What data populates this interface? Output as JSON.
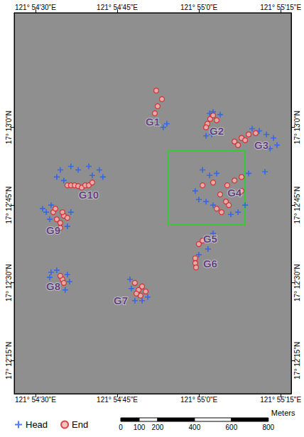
{
  "chart_data": {
    "type": "scatter",
    "xlim": [
      121.90725,
      121.92137
    ],
    "ylim": [
      17.20239,
      17.22281
    ],
    "xticks": [
      {
        "value": 121.908333,
        "label": "121° 54'30\"E"
      },
      {
        "value": 121.9125,
        "label": "121° 54'45\"E"
      },
      {
        "value": 121.916667,
        "label": "121° 55'0\"E"
      },
      {
        "value": 121.920833,
        "label": "121° 55'15\"E"
      }
    ],
    "yticks": [
      {
        "value": 17.204167,
        "label": "17° 12'15\"N"
      },
      {
        "value": 17.208333,
        "label": "17° 12'30\"N"
      },
      {
        "value": 17.2125,
        "label": "17° 12'45\"N"
      },
      {
        "value": 17.216667,
        "label": "17° 13'0\"N"
      }
    ],
    "grid": false,
    "legend": "bottom-left",
    "series": [
      {
        "name": "Head",
        "color": "#1f5cff",
        "marker": "cross",
        "values": [
          [
            121.91503,
            17.21686
          ],
          [
            121.91485,
            17.21667
          ],
          [
            121.91721,
            17.21742
          ],
          [
            121.91739,
            17.2175
          ],
          [
            121.91775,
            17.21735
          ],
          [
            121.91732,
            17.21629
          ],
          [
            121.91703,
            17.21621
          ],
          [
            121.91938,
            17.21659
          ],
          [
            121.91974,
            17.21648
          ],
          [
            121.92011,
            17.21629
          ],
          [
            121.92047,
            17.2161
          ],
          [
            121.92065,
            17.21572
          ],
          [
            121.92029,
            17.21553
          ],
          [
            121.92003,
            17.21428
          ],
          [
            121.91685,
            17.21439
          ],
          [
            121.91721,
            17.21409
          ],
          [
            121.91757,
            17.2142
          ],
          [
            121.91648,
            17.21326
          ],
          [
            121.91666,
            17.2128
          ],
          [
            121.91703,
            17.21269
          ],
          [
            121.91739,
            17.2125
          ],
          [
            121.9192,
            17.2142
          ],
          [
            121.91902,
            17.2125
          ],
          [
            121.91866,
            17.21212
          ],
          [
            121.91829,
            17.212
          ],
          [
            121.91713,
            17.21015
          ],
          [
            121.91739,
            17.21098
          ],
          [
            121.91666,
            17.20984
          ],
          [
            121.91315,
            17.20852
          ],
          [
            121.9134,
            17.20738
          ],
          [
            121.91377,
            17.20738
          ],
          [
            121.91406,
            17.20757
          ],
          [
            121.91322,
            17.20803
          ],
          [
            121.90913,
            17.2089
          ],
          [
            121.90942,
            17.20901
          ],
          [
            121.90996,
            17.20878
          ],
          [
            121.90906,
            17.20863
          ],
          [
            121.91007,
            17.2084
          ],
          [
            121.90985,
            17.20795
          ],
          [
            121.90888,
            17.21212
          ],
          [
            121.90906,
            17.21174
          ],
          [
            121.91014,
            17.21212
          ],
          [
            121.90996,
            17.21136
          ],
          [
            121.9087,
            17.21231
          ],
          [
            121.90913,
            17.2125
          ],
          [
            121.90942,
            17.21401
          ],
          [
            121.9096,
            17.21439
          ],
          [
            121.91014,
            17.21458
          ],
          [
            121.91051,
            17.21439
          ],
          [
            121.91105,
            17.21458
          ],
          [
            121.91159,
            17.21439
          ],
          [
            121.91177,
            17.21401
          ],
          [
            121.91123,
            17.21409
          ],
          [
            121.90978,
            17.21382
          ]
        ]
      },
      {
        "name": "End",
        "color": "#d62020",
        "marker": "circle",
        "values": [
          [
            121.91449,
            17.21864
          ],
          [
            121.91478,
            17.21818
          ],
          [
            121.91456,
            17.2178
          ],
          [
            121.91442,
            17.21742
          ],
          [
            121.9171,
            17.21686
          ],
          [
            121.91724,
            17.21712
          ],
          [
            121.91739,
            17.21731
          ],
          [
            121.91757,
            17.21705
          ],
          [
            121.91703,
            17.21667
          ],
          [
            121.91848,
            17.21591
          ],
          [
            121.91884,
            17.2161
          ],
          [
            121.9192,
            17.21629
          ],
          [
            121.91956,
            17.21636
          ],
          [
            121.91902,
            17.21598
          ],
          [
            121.91866,
            17.21572
          ],
          [
            121.91685,
            17.21356
          ],
          [
            121.91739,
            17.21371
          ],
          [
            121.91811,
            17.21356
          ],
          [
            121.91848,
            17.21382
          ],
          [
            121.91884,
            17.21401
          ],
          [
            121.91804,
            17.21269
          ],
          [
            121.91819,
            17.2125
          ],
          [
            121.91782,
            17.21212
          ],
          [
            121.91757,
            17.21231
          ],
          [
            121.91884,
            17.21326
          ],
          [
            121.91775,
            17.21307
          ],
          [
            121.91666,
            17.21041
          ],
          [
            121.91685,
            17.2106
          ],
          [
            121.91648,
            17.20965
          ],
          [
            121.91648,
            17.20939
          ],
          [
            121.91652,
            17.20916
          ],
          [
            121.9134,
            17.20833
          ],
          [
            121.91359,
            17.20795
          ],
          [
            121.91377,
            17.20814
          ],
          [
            121.91395,
            17.20787
          ],
          [
            121.91369,
            17.20765
          ],
          [
            121.91348,
            17.20776
          ],
          [
            121.90971,
            17.20852
          ],
          [
            121.90978,
            17.20833
          ],
          [
            121.9096,
            17.20871
          ],
          [
            121.90924,
            17.21212
          ],
          [
            121.90942,
            17.21174
          ],
          [
            121.9096,
            17.21155
          ],
          [
            121.90978,
            17.21193
          ],
          [
            121.90996,
            17.21182
          ],
          [
            121.9096,
            17.21128
          ],
          [
            121.90935,
            17.21231
          ],
          [
            121.90971,
            17.21212
          ],
          [
            121.90996,
            17.21356
          ],
          [
            121.91014,
            17.21356
          ],
          [
            121.91033,
            17.21356
          ],
          [
            121.91051,
            17.21352
          ],
          [
            121.91069,
            17.21344
          ],
          [
            121.91087,
            17.21356
          ],
          [
            121.91105,
            17.21356
          ],
          [
            121.91123,
            17.21371
          ]
        ]
      }
    ],
    "annotations": [
      {
        "text": "G1",
        "x": 121.91431,
        "y": 17.21697
      },
      {
        "text": "G2",
        "x": 121.91757,
        "y": 17.21648
      },
      {
        "text": "G3",
        "x": 121.91985,
        "y": 17.21572
      },
      {
        "text": "G4",
        "x": 121.91848,
        "y": 17.21318
      },
      {
        "text": "G5",
        "x": 121.91724,
        "y": 17.21068
      },
      {
        "text": "G6",
        "x": 121.91724,
        "y": 17.20935
      },
      {
        "text": "G7",
        "x": 121.91268,
        "y": 17.20738
      },
      {
        "text": "G8",
        "x": 121.90924,
        "y": 17.20814
      },
      {
        "text": "G9",
        "x": 121.90924,
        "y": 17.21117
      },
      {
        "text": "G10",
        "x": 121.91105,
        "y": 17.21307
      }
    ],
    "box": {
      "xlim": [
        121.91511,
        121.91902
      ],
      "ylim": [
        17.21144,
        17.21542
      ],
      "color": "#33cc33"
    },
    "scale_bar": {
      "label": "Meters",
      "ticks": [
        0,
        100,
        200,
        400,
        600,
        800
      ]
    }
  }
}
